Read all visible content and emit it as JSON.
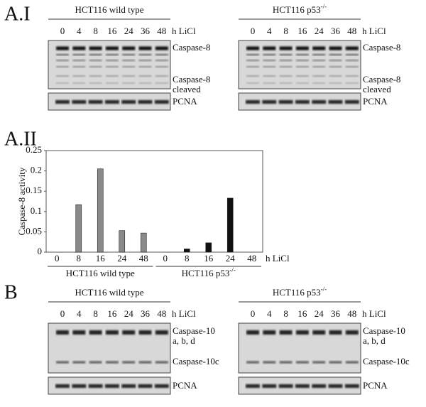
{
  "panel_labels": [
    "A.I",
    "A.II",
    "B"
  ],
  "blots_a": {
    "left": {
      "header": "HCT116 wild type",
      "lanes": [
        "0",
        "4",
        "8",
        "16",
        "24",
        "36",
        "48"
      ],
      "unit": "h LiCl",
      "labels": [
        "Caspase-8",
        "Caspase-8",
        "cleaved"
      ],
      "control": "PCNA"
    },
    "right": {
      "header": "HCT116 p53",
      "sup": "-/-",
      "lanes": [
        "0",
        "4",
        "8",
        "16",
        "24",
        "36",
        "48"
      ],
      "unit": "h LiCl",
      "labels": [
        "Caspase-8",
        "Caspase-8",
        "cleaved"
      ],
      "control": "PCNA"
    }
  },
  "blots_b": {
    "left": {
      "header": "HCT116 wild type",
      "lanes": [
        "0",
        "4",
        "8",
        "16",
        "24",
        "36",
        "48"
      ],
      "unit": "h LiCl",
      "labels": [
        "Caspase-10",
        "a, b, d",
        "Caspase-10c"
      ],
      "control": "PCNA"
    },
    "right": {
      "header": "HCT116 p53",
      "sup": "-/-",
      "lanes": [
        "0",
        "4",
        "8",
        "16",
        "24",
        "36",
        "48"
      ],
      "unit": "h LiCl",
      "labels": [
        "Caspase-10",
        "a, b, d",
        "Caspase-10c"
      ],
      "control": "PCNA"
    }
  },
  "chart_data": {
    "type": "bar",
    "ylabel": "Caspase-8 activity",
    "categories": [
      "0",
      "8",
      "16",
      "24",
      "48",
      "0",
      "8",
      "16",
      "24",
      "48"
    ],
    "series": [
      {
        "color": "#8a8a8a",
        "values": [
          0,
          0.117,
          0.205,
          0.053,
          0.047,
          null,
          null,
          null,
          null,
          null
        ]
      },
      {
        "color": "#111111",
        "values": [
          null,
          null,
          null,
          null,
          null,
          0,
          0.008,
          0.023,
          0.133,
          0
        ]
      }
    ],
    "groups": [
      {
        "label": "HCT116 wild type"
      },
      {
        "label": "HCT116 p53",
        "sup": "-/-"
      }
    ],
    "x_unit": "h LiCl",
    "ylim": [
      0,
      0.25
    ],
    "yticks": [
      0,
      0.05,
      0.1,
      0.15,
      0.2,
      0.25
    ]
  }
}
